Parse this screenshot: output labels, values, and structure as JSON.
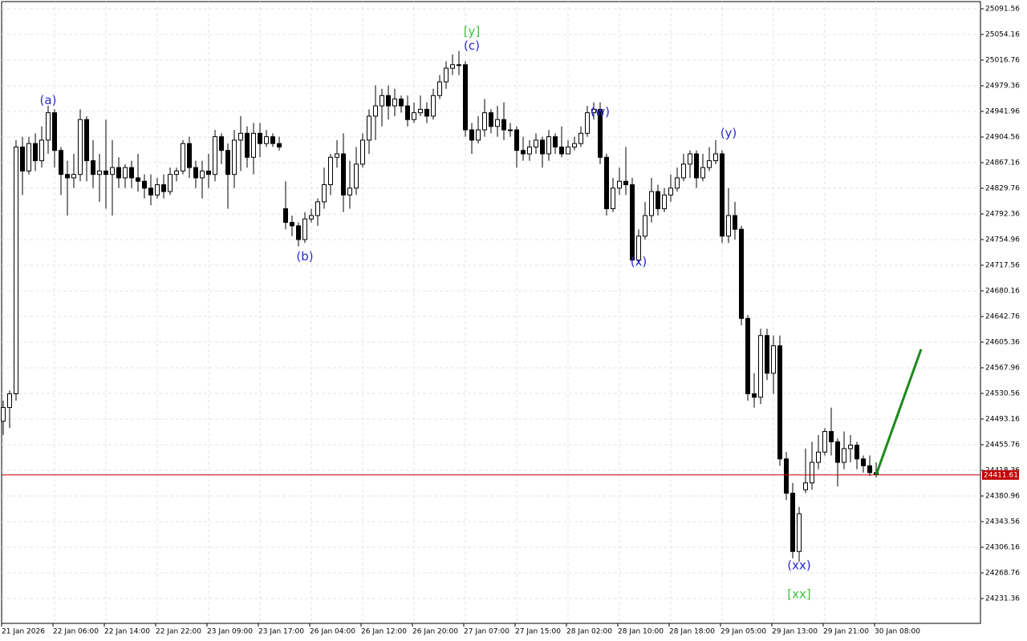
{
  "chart_data": {
    "type": "candlestick",
    "bull_color": "#ffffff",
    "bear_color": "#000000",
    "grid": true,
    "ylim": [
      24195.13,
      25102.08
    ],
    "yticks": [
      25091.56,
      25054.16,
      25016.76,
      24979.36,
      24941.96,
      24904.56,
      24867.16,
      24829.76,
      24792.36,
      24754.96,
      24717.56,
      24680.16,
      24642.76,
      24605.36,
      24567.96,
      24530.56,
      24493.16,
      24455.76,
      24418.36,
      24380.96,
      24343.56,
      24306.16,
      24268.76,
      24231.36
    ],
    "current_price": 24411.61,
    "current_price_color": "#c00000",
    "categories": [
      "21 Jan 2026",
      null,
      null,
      null,
      null,
      null,
      null,
      null,
      "22 Jan 06:00",
      null,
      null,
      null,
      null,
      null,
      null,
      null,
      "22 Jan 14:00",
      null,
      null,
      null,
      null,
      null,
      null,
      null,
      "22 Jan 22:00",
      null,
      null,
      null,
      null,
      null,
      null,
      null,
      "23 Jan 09:00",
      null,
      null,
      null,
      null,
      null,
      null,
      null,
      "23 Jan 17:00",
      null,
      null,
      null,
      null,
      null,
      null,
      null,
      "26 Jan 04:00",
      null,
      null,
      null,
      null,
      null,
      null,
      null,
      "26 Jan 12:00",
      null,
      null,
      null,
      null,
      null,
      null,
      null,
      "26 Jan 20:00",
      null,
      null,
      null,
      null,
      null,
      null,
      null,
      "27 Jan 07:00",
      null,
      null,
      null,
      null,
      null,
      null,
      null,
      "27 Jan 15:00",
      null,
      null,
      null,
      null,
      null,
      null,
      null,
      "28 Jan 02:00",
      null,
      null,
      null,
      null,
      null,
      null,
      null,
      "28 Jan 10:00",
      null,
      null,
      null,
      null,
      null,
      null,
      null,
      "28 Jan 18:00",
      null,
      null,
      null,
      null,
      null,
      null,
      null,
      "29 Jan 05:00",
      null,
      null,
      null,
      null,
      null,
      null,
      null,
      "29 Jan 13:00",
      null,
      null,
      null,
      null,
      null,
      null,
      null,
      "29 Jan 21:00",
      null,
      null,
      null,
      null,
      null,
      null,
      null,
      "30 Jan 08:00"
    ],
    "ohlc": [
      [
        24490,
        24520,
        24470,
        24510
      ],
      [
        24510,
        24535,
        24480,
        24530
      ],
      [
        24530,
        24900,
        24520,
        24890
      ],
      [
        24890,
        24905,
        24820,
        24855
      ],
      [
        24855,
        24905,
        24850,
        24895
      ],
      [
        24895,
        24910,
        24855,
        24870
      ],
      [
        24870,
        24920,
        24860,
        24900
      ],
      [
        24900,
        24950,
        24880,
        24940
      ],
      [
        24940,
        24945,
        24860,
        24885
      ],
      [
        24885,
        24890,
        24820,
        24850
      ],
      [
        24850,
        24870,
        24790,
        24845
      ],
      [
        24845,
        24880,
        24830,
        24850
      ],
      [
        24850,
        24945,
        24840,
        24930
      ],
      [
        24930,
        24935,
        24840,
        24870
      ],
      [
        24870,
        24900,
        24830,
        24850
      ],
      [
        24850,
        24880,
        24810,
        24855
      ],
      [
        24855,
        24930,
        24800,
        24850
      ],
      [
        24850,
        24900,
        24790,
        24860
      ],
      [
        24860,
        24875,
        24830,
        24845
      ],
      [
        24845,
        24865,
        24830,
        24860
      ],
      [
        24860,
        24870,
        24830,
        24845
      ],
      [
        24845,
        24880,
        24825,
        24840
      ],
      [
        24840,
        24850,
        24815,
        24830
      ],
      [
        24830,
        24850,
        24805,
        24820
      ],
      [
        24820,
        24845,
        24815,
        24835
      ],
      [
        24835,
        24850,
        24815,
        24825
      ],
      [
        24825,
        24860,
        24820,
        24850
      ],
      [
        24850,
        24860,
        24840,
        24855
      ],
      [
        24855,
        24900,
        24850,
        24895
      ],
      [
        24895,
        24905,
        24845,
        24860
      ],
      [
        24860,
        24870,
        24830,
        24845
      ],
      [
        24845,
        24870,
        24815,
        24855
      ],
      [
        24855,
        24880,
        24830,
        24850
      ],
      [
        24850,
        24915,
        24840,
        24905
      ],
      [
        24905,
        24910,
        24865,
        24885
      ],
      [
        24885,
        24895,
        24800,
        24850
      ],
      [
        24850,
        24915,
        24830,
        24900
      ],
      [
        24900,
        24935,
        24855,
        24910
      ],
      [
        24910,
        24920,
        24860,
        24875
      ],
      [
        24875,
        24925,
        24850,
        24910
      ],
      [
        24910,
        24925,
        24875,
        24895
      ],
      [
        24895,
        24915,
        24890,
        24905
      ],
      [
        24905,
        24910,
        24890,
        24895
      ],
      [
        24895,
        24905,
        24885,
        24890
      ],
      [
        24800,
        24840,
        24770,
        24780
      ],
      [
        24780,
        24790,
        24760,
        24775
      ],
      [
        24775,
        24780,
        24745,
        24755
      ],
      [
        24755,
        24795,
        24750,
        24785
      ],
      [
        24785,
        24800,
        24780,
        24790
      ],
      [
        24790,
        24815,
        24775,
        24810
      ],
      [
        24810,
        24860,
        24800,
        24835
      ],
      [
        24835,
        24880,
        24820,
        24875
      ],
      [
        24875,
        24900,
        24860,
        24880
      ],
      [
        24880,
        24910,
        24795,
        24820
      ],
      [
        24820,
        24870,
        24800,
        24830
      ],
      [
        24830,
        24890,
        24820,
        24865
      ],
      [
        24865,
        24910,
        24860,
        24900
      ],
      [
        24900,
        24945,
        24880,
        24935
      ],
      [
        24935,
        24980,
        24900,
        24950
      ],
      [
        24950,
        24975,
        24920,
        24965
      ],
      [
        24965,
        24980,
        24930,
        24950
      ],
      [
        24950,
        24975,
        24935,
        24960
      ],
      [
        24960,
        24965,
        24940,
        24950
      ],
      [
        24950,
        24965,
        24920,
        24930
      ],
      [
        24930,
        24955,
        24925,
        24940
      ],
      [
        24940,
        24965,
        24935,
        24945
      ],
      [
        24945,
        24955,
        24925,
        24935
      ],
      [
        24935,
        24975,
        24930,
        24965
      ],
      [
        24965,
        24995,
        24960,
        24985
      ],
      [
        24985,
        25015,
        24975,
        25005
      ],
      [
        25005,
        25025,
        24995,
        25010
      ],
      [
        25010,
        25030,
        24995,
        25010
      ],
      [
        25010,
        25015,
        24905,
        24915
      ],
      [
        24915,
        24925,
        24880,
        24900
      ],
      [
        24900,
        24935,
        24895,
        24915
      ],
      [
        24915,
        24960,
        24905,
        24940
      ],
      [
        24940,
        24945,
        24910,
        24920
      ],
      [
        24920,
        24950,
        24905,
        24930
      ],
      [
        24930,
        24955,
        24900,
        24915
      ],
      [
        24915,
        24925,
        24905,
        24915
      ],
      [
        24915,
        24920,
        24860,
        24885
      ],
      [
        24885,
        24905,
        24870,
        24880
      ],
      [
        24880,
        24900,
        24870,
        24890
      ],
      [
        24890,
        24910,
        24880,
        24900
      ],
      [
        24900,
        24905,
        24860,
        24880
      ],
      [
        24880,
        24915,
        24870,
        24905
      ],
      [
        24905,
        24910,
        24880,
        24890
      ],
      [
        24890,
        24920,
        24875,
        24880
      ],
      [
        24880,
        24900,
        24880,
        24890
      ],
      [
        24890,
        24905,
        24885,
        24895
      ],
      [
        24895,
        24920,
        24890,
        24910
      ],
      [
        24910,
        24950,
        24905,
        24940
      ],
      [
        24940,
        24955,
        24930,
        24945
      ],
      [
        24945,
        24955,
        24865,
        24875
      ],
      [
        24875,
        24880,
        24790,
        24800
      ],
      [
        24800,
        24845,
        24795,
        24830
      ],
      [
        24830,
        24860,
        24820,
        24840
      ],
      [
        24840,
        24890,
        24820,
        24835
      ],
      [
        24835,
        24845,
        24720,
        24725
      ],
      [
        24725,
        24770,
        24720,
        24760
      ],
      [
        24760,
        24810,
        24755,
        24790
      ],
      [
        24790,
        24845,
        24780,
        24825
      ],
      [
        24825,
        24835,
        24790,
        24800
      ],
      [
        24800,
        24830,
        24795,
        24820
      ],
      [
        24820,
        24850,
        24810,
        24830
      ],
      [
        24830,
        24860,
        24825,
        24845
      ],
      [
        24845,
        24880,
        24840,
        24865
      ],
      [
        24865,
        24885,
        24845,
        24880
      ],
      [
        24880,
        24885,
        24830,
        24845
      ],
      [
        24845,
        24880,
        24840,
        24860
      ],
      [
        24860,
        24890,
        24855,
        24870
      ],
      [
        24870,
        24900,
        24865,
        24880
      ],
      [
        24880,
        24885,
        24750,
        24760
      ],
      [
        24760,
        24830,
        24750,
        24790
      ],
      [
        24790,
        24810,
        24755,
        24770
      ],
      [
        24770,
        24775,
        24630,
        24640
      ],
      [
        24640,
        24645,
        24520,
        24530
      ],
      [
        24530,
        24560,
        24510,
        24525
      ],
      [
        24525,
        24625,
        24515,
        24615
      ],
      [
        24615,
        24625,
        24550,
        24560
      ],
      [
        24560,
        24615,
        24530,
        24600
      ],
      [
        24600,
        24615,
        24425,
        24435
      ],
      [
        24435,
        24445,
        24375,
        24385
      ],
      [
        24385,
        24400,
        24290,
        24300
      ],
      [
        24300,
        24365,
        24285,
        24355
      ],
      [
        24390,
        24450,
        24385,
        24400
      ],
      [
        24400,
        24460,
        24390,
        24430
      ],
      [
        24430,
        24470,
        24420,
        24445
      ],
      [
        24445,
        24480,
        24440,
        24475
      ],
      [
        24475,
        24510,
        24440,
        24460
      ],
      [
        24460,
        24465,
        24395,
        24430
      ],
      [
        24430,
        24475,
        24420,
        24450
      ],
      [
        24450,
        24470,
        24430,
        24455
      ],
      [
        24455,
        24460,
        24420,
        24435
      ],
      [
        24435,
        24440,
        24415,
        24425
      ],
      [
        24425,
        24440,
        24410,
        24415
      ],
      [
        24415,
        24430,
        24408,
        24412
      ]
    ],
    "forecast": {
      "color": "#1a8a1a",
      "x": [
        136,
        143
      ],
      "values": [
        24412,
        24595
      ]
    },
    "annotations": [
      {
        "text": "(a)",
        "x": 7,
        "price": 24958,
        "color": "#2a2ad0"
      },
      {
        "text": "(b)",
        "x": 47,
        "price": 24730,
        "color": "#2a2ad0"
      },
      {
        "text": "[y]",
        "x": 73,
        "price": 25058,
        "color": "#40c040"
      },
      {
        "text": "(c)",
        "x": 73,
        "price": 25037,
        "color": "#2a2ad0"
      },
      {
        "text": "(w)",
        "x": 93,
        "price": 24941,
        "color": "#2a2ad0"
      },
      {
        "text": "(x)",
        "x": 99,
        "price": 24722,
        "color": "#2a2ad0"
      },
      {
        "text": "(y)",
        "x": 113,
        "price": 24910,
        "color": "#2a2ad0"
      },
      {
        "text": "(xx)",
        "x": 124,
        "price": 24279,
        "color": "#2a2ad0"
      },
      {
        "text": "[xx]",
        "x": 124,
        "price": 24237,
        "color": "#40c040"
      }
    ]
  }
}
